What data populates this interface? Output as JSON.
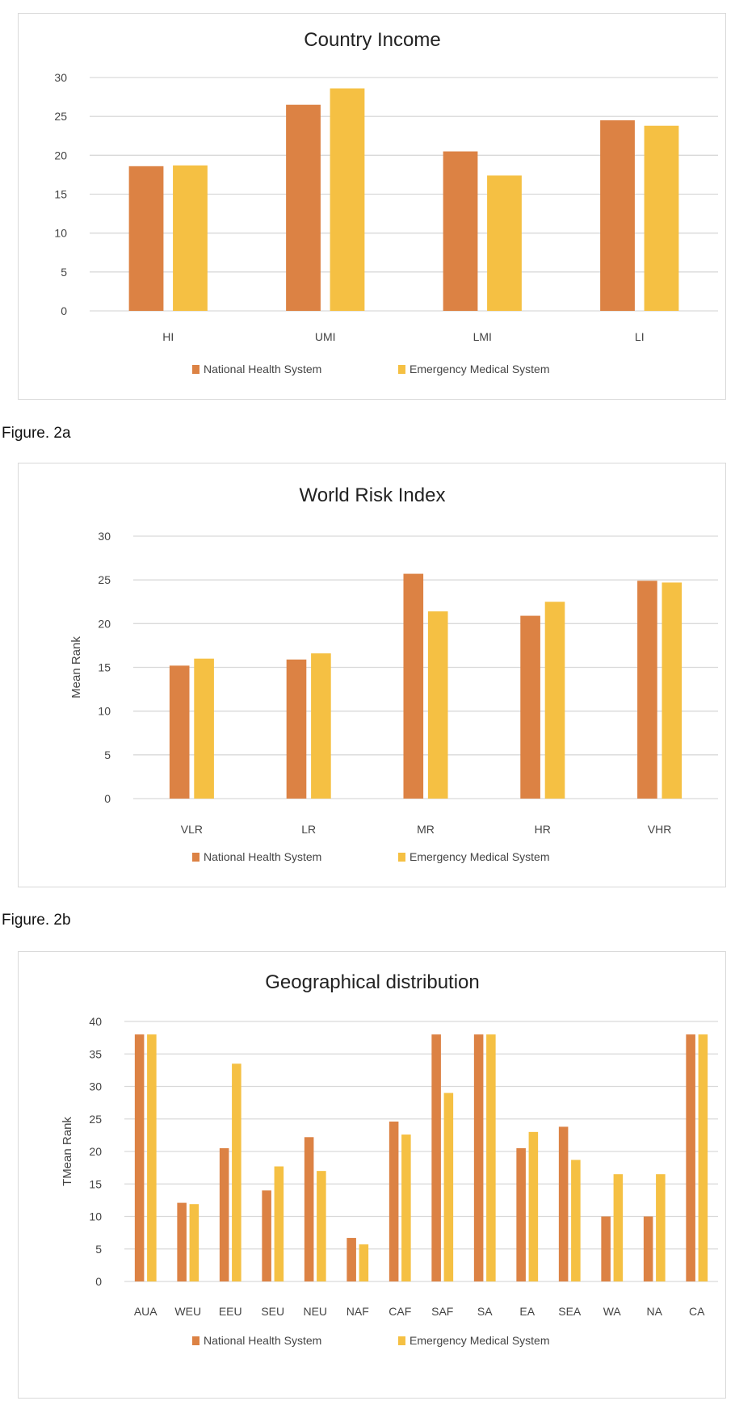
{
  "colors": {
    "national": "#dc8244",
    "emergency": "#f5c043",
    "grid": "#d9d9d9",
    "text": "#444444"
  },
  "figure_labels": [
    "Figure. 2a",
    "Figure. 2b"
  ],
  "chart_data": [
    {
      "type": "bar",
      "title": "Country Income",
      "xlabel": "",
      "ylabel": "",
      "ylim": [
        0,
        30
      ],
      "yticks": [
        0,
        5,
        10,
        15,
        20,
        25,
        30
      ],
      "grid": true,
      "legend": "bottom",
      "categories": [
        "HI",
        "UMI",
        "LMI",
        "LI"
      ],
      "series": [
        {
          "name": "National Health System",
          "values": [
            18.6,
            26.5,
            20.5,
            24.5
          ]
        },
        {
          "name": "Emergency Medical System",
          "values": [
            18.7,
            28.6,
            17.4,
            23.8
          ]
        }
      ]
    },
    {
      "type": "bar",
      "title": "World Risk Index",
      "xlabel": "",
      "ylabel": "Mean Rank",
      "ylim": [
        0,
        30
      ],
      "yticks": [
        0,
        5,
        10,
        15,
        20,
        25,
        30
      ],
      "grid": true,
      "legend": "bottom",
      "categories": [
        "VLR",
        "LR",
        "MR",
        "HR",
        "VHR"
      ],
      "series": [
        {
          "name": "National Health System",
          "values": [
            15.2,
            15.9,
            25.7,
            20.9,
            24.9
          ]
        },
        {
          "name": "Emergency Medical System",
          "values": [
            16.0,
            16.6,
            21.4,
            22.5,
            24.7
          ]
        }
      ]
    },
    {
      "type": "bar",
      "title": "Geographical distribution",
      "xlabel": "",
      "ylabel": "TMean Rank",
      "ylim": [
        0,
        40
      ],
      "yticks": [
        0,
        5,
        10,
        15,
        20,
        25,
        30,
        35,
        40
      ],
      "grid": true,
      "legend": "bottom",
      "categories": [
        "AUA",
        "WEU",
        "EEU",
        "SEU",
        "NEU",
        "NAF",
        "CAF",
        "SAF",
        "SA",
        "EA",
        "SEA",
        "WA",
        "NA",
        "CA"
      ],
      "series": [
        {
          "name": "National Health System",
          "values": [
            38,
            12.1,
            20.5,
            14,
            22.2,
            6.7,
            24.6,
            38,
            38,
            20.5,
            23.8,
            10,
            10,
            38
          ]
        },
        {
          "name": "Emergency Medical System",
          "values": [
            38,
            11.9,
            33.5,
            17.7,
            17,
            5.7,
            22.6,
            29,
            38,
            23,
            18.7,
            16.5,
            16.5,
            38
          ]
        }
      ]
    }
  ]
}
